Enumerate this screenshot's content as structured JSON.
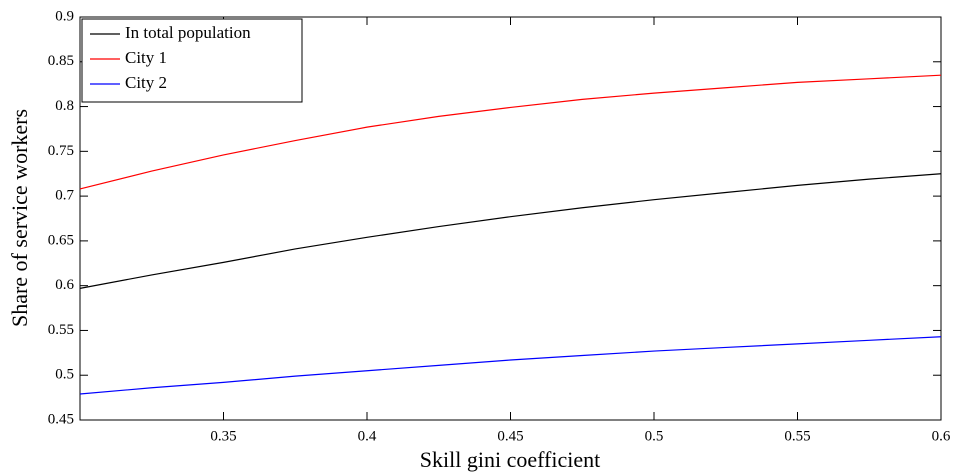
{
  "chart_data": {
    "type": "line",
    "x_label": "Skill gini coefficient",
    "y_label": "Share of service workers",
    "x": [
      0.3,
      0.325,
      0.35,
      0.375,
      0.4,
      0.425,
      0.45,
      0.475,
      0.5,
      0.525,
      0.55,
      0.575,
      0.6
    ],
    "series": [
      {
        "name": "In total population",
        "color": "#000000",
        "values": [
          0.597,
          0.612,
          0.626,
          0.641,
          0.654,
          0.666,
          0.677,
          0.687,
          0.696,
          0.704,
          0.712,
          0.719,
          0.725
        ]
      },
      {
        "name": "City 1",
        "color": "#ff0000",
        "values": [
          0.708,
          0.728,
          0.746,
          0.762,
          0.777,
          0.789,
          0.799,
          0.808,
          0.815,
          0.821,
          0.827,
          0.831,
          0.835
        ]
      },
      {
        "name": "City 2",
        "color": "#0000ff",
        "values": [
          0.479,
          0.486,
          0.492,
          0.499,
          0.505,
          0.511,
          0.517,
          0.522,
          0.527,
          0.531,
          0.535,
          0.539,
          0.543
        ]
      }
    ],
    "xlim": [
      0.3,
      0.6
    ],
    "xticks": [
      0.35,
      0.4,
      0.45,
      0.5,
      0.55,
      0.6
    ],
    "ylim": [
      0.45,
      0.9
    ],
    "yticks": [
      0.45,
      0.5,
      0.55,
      0.6,
      0.65,
      0.7,
      0.75,
      0.8,
      0.85,
      0.9
    ],
    "legend": "upper-left"
  }
}
